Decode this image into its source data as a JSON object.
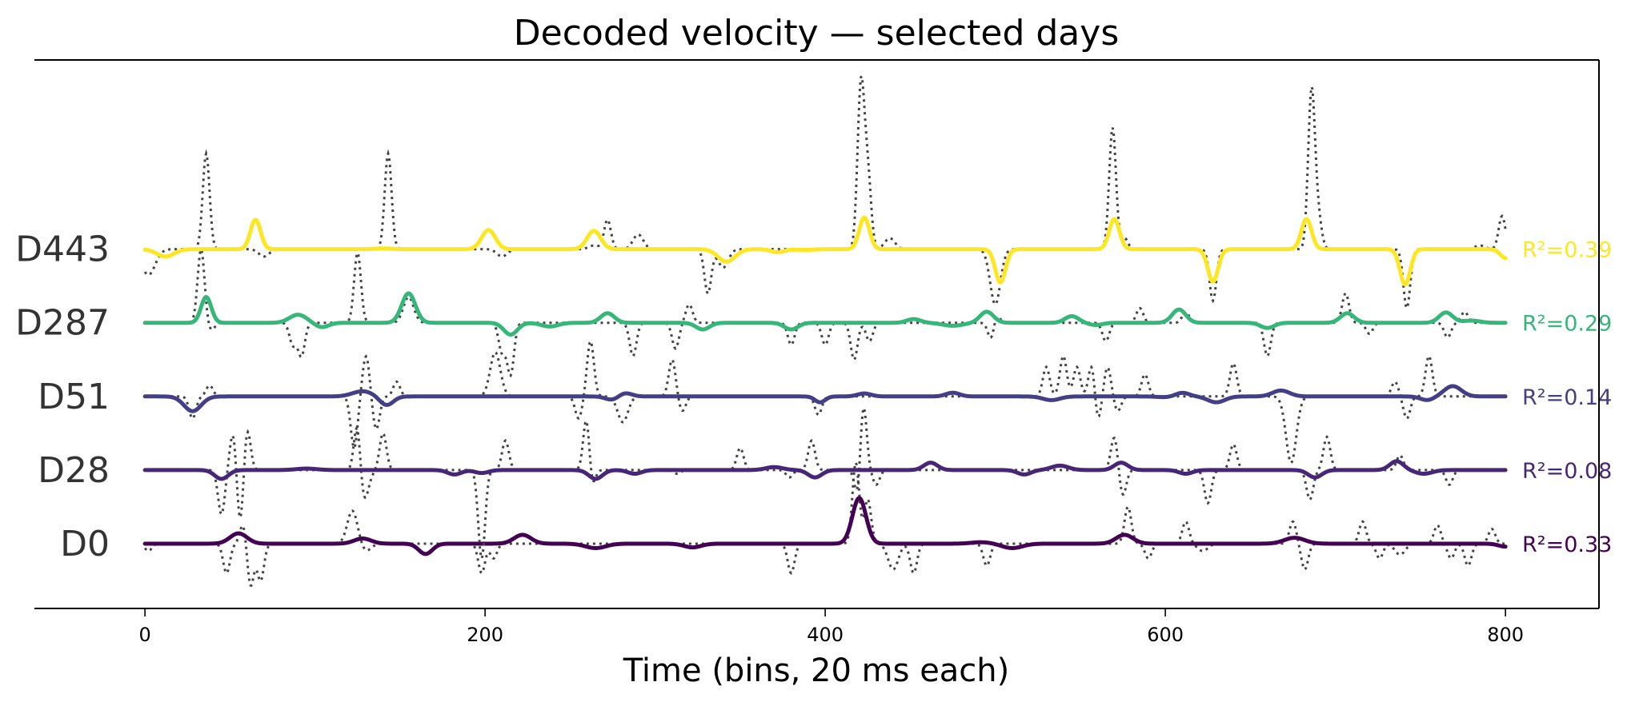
{
  "chart_data": {
    "type": "line",
    "title": "Decoded velocity — selected days",
    "xlabel": "Time (bins, 20 ms each)",
    "ylabel": "",
    "xlim": [
      -65,
      855
    ],
    "ylim": [
      -0.88,
      6.57
    ],
    "xticks": [
      0,
      200,
      400,
      600,
      800
    ],
    "xtick_labels": [
      "0",
      "200",
      "400",
      "600",
      "800"
    ],
    "grid": false,
    "legend": "none",
    "true_trace_style": {
      "color": "#444444",
      "dash": "dotted"
    },
    "series": [
      {
        "name": "D0",
        "label": "D0",
        "offset": 0,
        "color": "#440154",
        "r2_text": "R²=0.33",
        "decoded_events": [
          [
            55,
            0.14,
            5
          ],
          [
            128,
            0.07,
            5
          ],
          [
            165,
            -0.14,
            4
          ],
          [
            222,
            0.12,
            5
          ],
          [
            265,
            -0.06,
            6
          ],
          [
            322,
            -0.05,
            5
          ],
          [
            420,
            0.62,
            4
          ],
          [
            440,
            0.0,
            4
          ],
          [
            492,
            0.02,
            6
          ],
          [
            510,
            -0.06,
            6
          ],
          [
            576,
            0.12,
            5
          ],
          [
            676,
            0.08,
            6
          ],
          [
            800,
            -0.04,
            4
          ]
        ],
        "true_events": [
          [
            2,
            -0.1,
            2
          ],
          [
            48,
            -0.4,
            2
          ],
          [
            58,
            0.3,
            2
          ],
          [
            62,
            -0.6,
            2
          ],
          [
            68,
            -0.5,
            2
          ],
          [
            122,
            0.45,
            3
          ],
          [
            130,
            -0.1,
            3
          ],
          [
            198,
            -0.4,
            2
          ],
          [
            205,
            -0.2,
            2
          ],
          [
            380,
            -0.4,
            2
          ],
          [
            418,
            1.1,
            2
          ],
          [
            425,
            0.6,
            2
          ],
          [
            440,
            -0.35,
            3
          ],
          [
            452,
            -0.4,
            2
          ],
          [
            495,
            -0.3,
            2
          ],
          [
            578,
            0.5,
            2
          ],
          [
            590,
            -0.2,
            2
          ],
          [
            612,
            0.3,
            2
          ],
          [
            622,
            -0.1,
            3
          ],
          [
            675,
            0.3,
            2
          ],
          [
            682,
            -0.35,
            2
          ],
          [
            716,
            0.3,
            2
          ],
          [
            726,
            -0.2,
            2
          ],
          [
            738,
            -0.15,
            3
          ],
          [
            760,
            0.25,
            2
          ],
          [
            768,
            -0.2,
            2
          ],
          [
            778,
            -0.3,
            2
          ],
          [
            792,
            0.2,
            2
          ]
        ]
      },
      {
        "name": "D28",
        "label": "D28",
        "offset": 1,
        "color": "#482677",
        "r2_text": "R²=0.08",
        "decoded_events": [
          [
            45,
            -0.12,
            4
          ],
          [
            95,
            0.02,
            6
          ],
          [
            182,
            -0.06,
            4
          ],
          [
            198,
            -0.04,
            4
          ],
          [
            265,
            -0.12,
            4
          ],
          [
            288,
            -0.05,
            4
          ],
          [
            370,
            0.04,
            5
          ],
          [
            394,
            -0.1,
            4
          ],
          [
            462,
            0.1,
            4
          ],
          [
            517,
            -0.06,
            4
          ],
          [
            538,
            0.06,
            5
          ],
          [
            574,
            0.1,
            4
          ],
          [
            612,
            -0.05,
            4
          ],
          [
            688,
            -0.1,
            4
          ],
          [
            736,
            0.12,
            4
          ],
          [
            752,
            -0.05,
            5
          ]
        ],
        "true_events": [
          [
            45,
            -0.6,
            2
          ],
          [
            52,
            0.55,
            2
          ],
          [
            56,
            -0.8,
            2
          ],
          [
            60,
            0.6,
            2
          ],
          [
            125,
            0.85,
            2
          ],
          [
            128,
            -0.5,
            3
          ],
          [
            140,
            0.5,
            2
          ],
          [
            198,
            -1.2,
            2
          ],
          [
            212,
            0.4,
            2
          ],
          [
            260,
            0.9,
            2
          ],
          [
            262,
            -0.45,
            2
          ],
          [
            313,
            -0.05,
            2
          ],
          [
            350,
            0.3,
            2
          ],
          [
            379,
            -0.1,
            2
          ],
          [
            392,
            0.4,
            2
          ],
          [
            420,
            -0.7,
            2
          ],
          [
            422,
            1.2,
            2
          ],
          [
            430,
            -0.2,
            2
          ],
          [
            570,
            0.45,
            2
          ],
          [
            575,
            -0.35,
            2
          ],
          [
            625,
            -0.45,
            2
          ],
          [
            640,
            0.35,
            2
          ],
          [
            685,
            -0.4,
            2
          ],
          [
            695,
            0.45,
            2
          ],
          [
            738,
            0.2,
            2
          ],
          [
            767,
            -0.2,
            2
          ]
        ]
      },
      {
        "name": "D51",
        "label": "D51",
        "offset": 2,
        "color": "#433e85",
        "r2_text": "R²=0.14",
        "decoded_events": [
          [
            28,
            -0.2,
            5
          ],
          [
            128,
            0.07,
            6
          ],
          [
            142,
            -0.12,
            4
          ],
          [
            275,
            -0.05,
            4
          ],
          [
            282,
            0.05,
            4
          ],
          [
            397,
            -0.08,
            3
          ],
          [
            423,
            0.04,
            4
          ],
          [
            475,
            0.05,
            4
          ],
          [
            533,
            -0.05,
            5
          ],
          [
            600,
            -0.01,
            5
          ],
          [
            610,
            0.05,
            4
          ],
          [
            630,
            -0.08,
            5
          ],
          [
            668,
            0.08,
            5
          ],
          [
            754,
            -0.05,
            4
          ],
          [
            769,
            0.14,
            5
          ],
          [
            800,
            0.0,
            3
          ]
        ],
        "true_events": [
          [
            28,
            -0.3,
            2
          ],
          [
            38,
            0.15,
            2
          ],
          [
            123,
            -0.7,
            2
          ],
          [
            130,
            0.55,
            2
          ],
          [
            136,
            -0.45,
            2
          ],
          [
            148,
            0.2,
            2
          ],
          [
            206,
            0.6,
            3
          ],
          [
            255,
            -0.3,
            2
          ],
          [
            262,
            0.75,
            2
          ],
          [
            281,
            -0.35,
            3
          ],
          [
            310,
            0.5,
            2
          ],
          [
            316,
            -0.2,
            2
          ],
          [
            396,
            -0.25,
            2
          ],
          [
            530,
            0.4,
            2
          ],
          [
            540,
            0.55,
            2
          ],
          [
            548,
            0.4,
            2
          ],
          [
            557,
            0.5,
            2
          ],
          [
            560,
            -0.4,
            2
          ],
          [
            566,
            0.4,
            2
          ],
          [
            572,
            -0.2,
            2
          ],
          [
            588,
            0.3,
            2
          ],
          [
            640,
            0.45,
            2
          ],
          [
            674,
            -0.9,
            3
          ],
          [
            735,
            0.2,
            2
          ],
          [
            742,
            -0.3,
            2
          ],
          [
            755,
            0.55,
            2
          ]
        ]
      },
      {
        "name": "D287",
        "label": "D287",
        "offset": 3,
        "color": "#35b779",
        "r2_text": "R²=0.29",
        "decoded_events": [
          [
            36,
            0.35,
            3
          ],
          [
            90,
            0.11,
            5
          ],
          [
            104,
            -0.06,
            4
          ],
          [
            155,
            0.4,
            4
          ],
          [
            215,
            -0.16,
            4
          ],
          [
            238,
            -0.05,
            5
          ],
          [
            272,
            0.13,
            4
          ],
          [
            315,
            0.0,
            4
          ],
          [
            328,
            -0.09,
            4
          ],
          [
            380,
            -0.09,
            4
          ],
          [
            452,
            0.05,
            4
          ],
          [
            475,
            -0.04,
            6
          ],
          [
            495,
            0.15,
            4
          ],
          [
            545,
            0.09,
            4
          ],
          [
            559,
            -0.03,
            4
          ],
          [
            608,
            0.18,
            4
          ],
          [
            660,
            -0.07,
            4
          ],
          [
            707,
            0.13,
            4
          ],
          [
            765,
            0.14,
            4
          ],
          [
            780,
            0.03,
            5
          ]
        ],
        "true_events": [
          [
            33,
            1.0,
            2
          ],
          [
            39,
            -0.1,
            2
          ],
          [
            87,
            -0.3,
            2
          ],
          [
            92,
            -0.45,
            2
          ],
          [
            125,
            0.95,
            2
          ],
          [
            155,
            0.35,
            3
          ],
          [
            210,
            -0.4,
            2
          ],
          [
            215,
            -0.7,
            2
          ],
          [
            287,
            -0.45,
            2
          ],
          [
            312,
            -0.35,
            2
          ],
          [
            320,
            0.25,
            2
          ],
          [
            380,
            -0.3,
            2
          ],
          [
            400,
            -0.3,
            2
          ],
          [
            417,
            -0.5,
            2
          ],
          [
            426,
            -0.25,
            2
          ],
          [
            498,
            -0.3,
            2
          ],
          [
            500,
            0.2,
            2
          ],
          [
            565,
            -0.25,
            2
          ],
          [
            585,
            0.2,
            2
          ],
          [
            612,
            0.15,
            2
          ],
          [
            660,
            -0.45,
            2
          ],
          [
            706,
            0.4,
            2
          ],
          [
            720,
            -0.15,
            2
          ],
          [
            766,
            -0.2,
            2
          ],
          [
            776,
            0.15,
            2
          ]
        ]
      },
      {
        "name": "D443",
        "label": "D443",
        "offset": 4,
        "color": "#fde725",
        "r2_text": "R²=0.39",
        "decoded_events": [
          [
            12,
            -0.1,
            5
          ],
          [
            65,
            0.4,
            3
          ],
          [
            140,
            0.01,
            5
          ],
          [
            202,
            0.26,
            4
          ],
          [
            264,
            0.25,
            4
          ],
          [
            342,
            -0.17,
            5
          ],
          [
            372,
            -0.04,
            4
          ],
          [
            388,
            -0.01,
            5
          ],
          [
            423,
            0.43,
            3
          ],
          [
            494,
            0.0,
            4
          ],
          [
            503,
            -0.45,
            3
          ],
          [
            570,
            0.41,
            3
          ],
          [
            628,
            -0.44,
            3
          ],
          [
            683,
            0.41,
            3
          ],
          [
            741,
            -0.48,
            3
          ],
          [
            800,
            -0.12,
            3
          ]
        ],
        "true_events": [
          [
            2,
            -0.35,
            4
          ],
          [
            36,
            1.3,
            2
          ],
          [
            70,
            -0.1,
            3
          ],
          [
            143,
            1.3,
            2
          ],
          [
            210,
            -0.1,
            3
          ],
          [
            264,
            0.05,
            3
          ],
          [
            272,
            0.4,
            2
          ],
          [
            290,
            0.2,
            3
          ],
          [
            331,
            -0.6,
            2
          ],
          [
            340,
            -0.25,
            3
          ],
          [
            421,
            2.2,
            2
          ],
          [
            425,
            1.0,
            2
          ],
          [
            438,
            0.15,
            3
          ],
          [
            500,
            -0.75,
            3
          ],
          [
            569,
            1.65,
            2
          ],
          [
            576,
            0.15,
            2
          ],
          [
            628,
            -0.7,
            2
          ],
          [
            686,
            2.15,
            2
          ],
          [
            690,
            0.4,
            2
          ],
          [
            742,
            -0.8,
            2
          ],
          [
            785,
            0.05,
            3
          ],
          [
            798,
            0.45,
            2
          ]
        ]
      }
    ]
  }
}
